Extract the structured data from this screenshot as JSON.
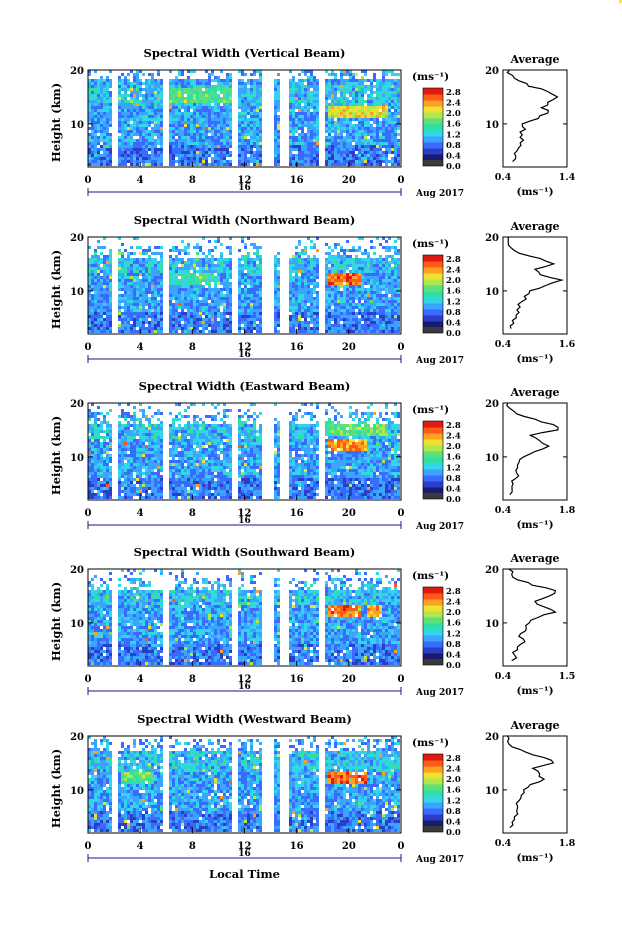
{
  "figure": {
    "x_axis_title": "Local Time",
    "date_label": "Aug 2017",
    "day_label": "16",
    "y_axis_title": "Height (km)",
    "colorbar_unit": "(ms⁻¹)",
    "profile_title": "Average",
    "profile_unit": "(ms⁻¹)"
  },
  "colors": {
    "colorbar": [
      "#1a1a6e",
      "#2a3fc4",
      "#3a6bff",
      "#3aa5ff",
      "#33d6e8",
      "#2ee0a8",
      "#5be07a",
      "#aee84a",
      "#f0e030",
      "#ffa020",
      "#ff5a1a",
      "#e01a10"
    ],
    "bar_bottom": "#3a3a3a"
  },
  "chart_data": [
    {
      "type": "heatmap",
      "title": "Spectral Width (Vertical Beam)",
      "x_ticks": [
        "0",
        "4",
        "8",
        "12",
        "16",
        "20",
        "0"
      ],
      "xlim": [
        0,
        24
      ],
      "y_ticks": [
        "20",
        "10"
      ],
      "ylim": [
        2,
        20
      ],
      "colorbar_ticks": [
        "2.8",
        "2.4",
        "2.0",
        "1.6",
        "1.2",
        "0.8",
        "0.4",
        "0.0"
      ],
      "gaps": [
        [
          1.8,
          2.3
        ],
        [
          5.7,
          6.1
        ],
        [
          11.1,
          11.5
        ],
        [
          13.3,
          14.2
        ],
        [
          14.8,
          15.3
        ],
        [
          17.6,
          18.1
        ]
      ],
      "upper_clear_km": 20,
      "enhanced_layers": [
        {
          "x0": 18.5,
          "x1": 23,
          "h": 12,
          "level": 0.75
        },
        {
          "x0": 6,
          "x1": 11,
          "h": 15,
          "level": 0.55
        }
      ],
      "profile": {
        "title": "Average",
        "xlim": [
          0.4,
          1.4
        ],
        "x_ticks": [
          "0.4",
          "1.4"
        ],
        "y_ticks": [
          "20",
          "10"
        ],
        "heights": [
          3,
          4,
          5,
          6,
          7,
          8,
          9,
          10,
          11,
          12,
          13,
          14,
          15,
          16,
          17,
          18,
          19,
          20
        ],
        "values": [
          0.55,
          0.6,
          0.62,
          0.68,
          0.72,
          0.7,
          0.75,
          0.7,
          0.95,
          1.1,
          1.0,
          1.1,
          1.25,
          1.1,
          0.8,
          0.65,
          0.55,
          0.5
        ]
      }
    },
    {
      "type": "heatmap",
      "title": "Spectral Width (Northward Beam)",
      "x_ticks": [
        "0",
        "4",
        "8",
        "12",
        "16",
        "20",
        "0"
      ],
      "xlim": [
        0,
        24
      ],
      "y_ticks": [
        "20",
        "10"
      ],
      "ylim": [
        2,
        20
      ],
      "colorbar_ticks": [
        "2.8",
        "2.4",
        "2.0",
        "1.6",
        "1.2",
        "0.8",
        "0.4",
        "0.0"
      ],
      "gaps": [
        [
          1.8,
          2.3
        ],
        [
          5.7,
          6.1
        ],
        [
          11.1,
          11.5
        ],
        [
          13.3,
          14.2
        ],
        [
          14.8,
          15.3
        ],
        [
          17.6,
          18.1
        ]
      ],
      "upper_clear_km": 18,
      "enhanced_layers": [
        {
          "x0": 18.5,
          "x1": 21,
          "h": 12,
          "level": 0.9
        },
        {
          "x0": 6,
          "x1": 10,
          "h": 12,
          "level": 0.5
        }
      ],
      "profile": {
        "title": "Average",
        "xlim": [
          0.4,
          1.6
        ],
        "x_ticks": [
          "0.4",
          "1.6"
        ],
        "y_ticks": [
          "20",
          "10"
        ],
        "heights": [
          3,
          4,
          5,
          6,
          7,
          8,
          9,
          10,
          11,
          12,
          13,
          14,
          15,
          16,
          17,
          18,
          19,
          20
        ],
        "values": [
          0.55,
          0.6,
          0.65,
          0.7,
          0.72,
          0.75,
          0.8,
          0.9,
          1.2,
          1.5,
          1.1,
          1.0,
          1.35,
          1.1,
          0.7,
          0.55,
          0.5,
          0.5
        ]
      }
    },
    {
      "type": "heatmap",
      "title": "Spectral Width (Eastward Beam)",
      "x_ticks": [
        "0",
        "4",
        "8",
        "12",
        "16",
        "20",
        "0"
      ],
      "xlim": [
        0,
        24
      ],
      "y_ticks": [
        "20",
        "10"
      ],
      "ylim": [
        2,
        20
      ],
      "colorbar_ticks": [
        "2.8",
        "2.4",
        "2.0",
        "1.6",
        "1.2",
        "0.8",
        "0.4",
        "0.0"
      ],
      "gaps": [
        [
          1.8,
          2.3
        ],
        [
          5.7,
          6.1
        ],
        [
          11.1,
          11.5
        ],
        [
          13.3,
          14.2
        ],
        [
          14.8,
          15.3
        ],
        [
          17.6,
          18.1
        ]
      ],
      "upper_clear_km": 18,
      "enhanced_layers": [
        {
          "x0": 18.3,
          "x1": 21.5,
          "h": 12,
          "level": 0.85
        },
        {
          "x0": 18.5,
          "x1": 23,
          "h": 15,
          "level": 0.6
        }
      ],
      "profile": {
        "title": "Average",
        "xlim": [
          0.4,
          1.8
        ],
        "x_ticks": [
          "0.4",
          "1.8"
        ],
        "y_ticks": [
          "20",
          "10"
        ],
        "heights": [
          3,
          4,
          5,
          6,
          7,
          8,
          9,
          10,
          11,
          12,
          13,
          14,
          15,
          16,
          17,
          18,
          19,
          20
        ],
        "values": [
          0.55,
          0.6,
          0.62,
          0.68,
          0.7,
          0.72,
          0.75,
          0.85,
          1.1,
          1.4,
          1.2,
          1.0,
          1.6,
          1.5,
          1.1,
          0.7,
          0.55,
          0.5
        ]
      }
    },
    {
      "type": "heatmap",
      "title": "Spectral Width (Southward Beam)",
      "x_ticks": [
        "0",
        "4",
        "8",
        "12",
        "16",
        "20",
        "0"
      ],
      "xlim": [
        0,
        24
      ],
      "y_ticks": [
        "20",
        "10"
      ],
      "ylim": [
        2,
        20
      ],
      "colorbar_ticks": [
        "2.8",
        "2.4",
        "2.0",
        "1.6",
        "1.2",
        "0.8",
        "0.4",
        "0.0"
      ],
      "gaps": [
        [
          1.8,
          2.3
        ],
        [
          5.7,
          6.1
        ],
        [
          11.1,
          11.5
        ],
        [
          13.3,
          14.2
        ],
        [
          14.8,
          15.3
        ],
        [
          17.6,
          18.1
        ]
      ],
      "upper_clear_km": 18,
      "enhanced_layers": [
        {
          "x0": 18.3,
          "x1": 21,
          "h": 12,
          "level": 0.9
        },
        {
          "x0": 21.5,
          "x1": 22.5,
          "h": 12,
          "level": 0.8
        }
      ],
      "profile": {
        "title": "Average",
        "xlim": [
          0.4,
          1.5
        ],
        "x_ticks": [
          "0.4",
          "1.5"
        ],
        "y_ticks": [
          "20",
          "10"
        ],
        "heights": [
          3,
          4,
          5,
          6,
          7,
          8,
          9,
          10,
          11,
          12,
          13,
          14,
          15,
          16,
          17,
          18,
          19,
          20
        ],
        "values": [
          0.55,
          0.6,
          0.65,
          0.7,
          0.75,
          0.7,
          0.8,
          0.85,
          1.0,
          1.3,
          1.1,
          0.95,
          1.2,
          1.3,
          0.9,
          0.65,
          0.55,
          0.5
        ]
      }
    },
    {
      "type": "heatmap",
      "title": "Spectral Width (Westward Beam)",
      "x_ticks": [
        "0",
        "4",
        "8",
        "12",
        "16",
        "20",
        "0"
      ],
      "xlim": [
        0,
        24
      ],
      "y_ticks": [
        "20",
        "10"
      ],
      "ylim": [
        2,
        20
      ],
      "colorbar_ticks": [
        "2.8",
        "2.4",
        "2.0",
        "1.6",
        "1.2",
        "0.8",
        "0.4",
        "0.0"
      ],
      "gaps": [
        [
          1.8,
          2.3
        ],
        [
          5.7,
          6.1
        ],
        [
          11.1,
          11.5
        ],
        [
          13.3,
          14.2
        ],
        [
          14.8,
          15.3
        ],
        [
          17.6,
          18.1
        ]
      ],
      "upper_clear_km": 19,
      "enhanced_layers": [
        {
          "x0": 18.3,
          "x1": 21.5,
          "h": 12,
          "level": 0.9
        },
        {
          "x0": 2.5,
          "x1": 5,
          "h": 12,
          "level": 0.55
        }
      ],
      "profile": {
        "title": "Average",
        "xlim": [
          0.4,
          1.8
        ],
        "x_ticks": [
          "0.4",
          "1.8"
        ],
        "y_ticks": [
          "20",
          "10"
        ],
        "heights": [
          3,
          4,
          5,
          6,
          7,
          8,
          9,
          10,
          11,
          12,
          13,
          14,
          15,
          16,
          17,
          18,
          19,
          20
        ],
        "values": [
          0.55,
          0.6,
          0.65,
          0.7,
          0.72,
          0.75,
          0.8,
          0.85,
          1.0,
          1.3,
          1.2,
          1.05,
          1.5,
          1.3,
          0.9,
          0.6,
          0.5,
          0.5
        ]
      }
    }
  ]
}
